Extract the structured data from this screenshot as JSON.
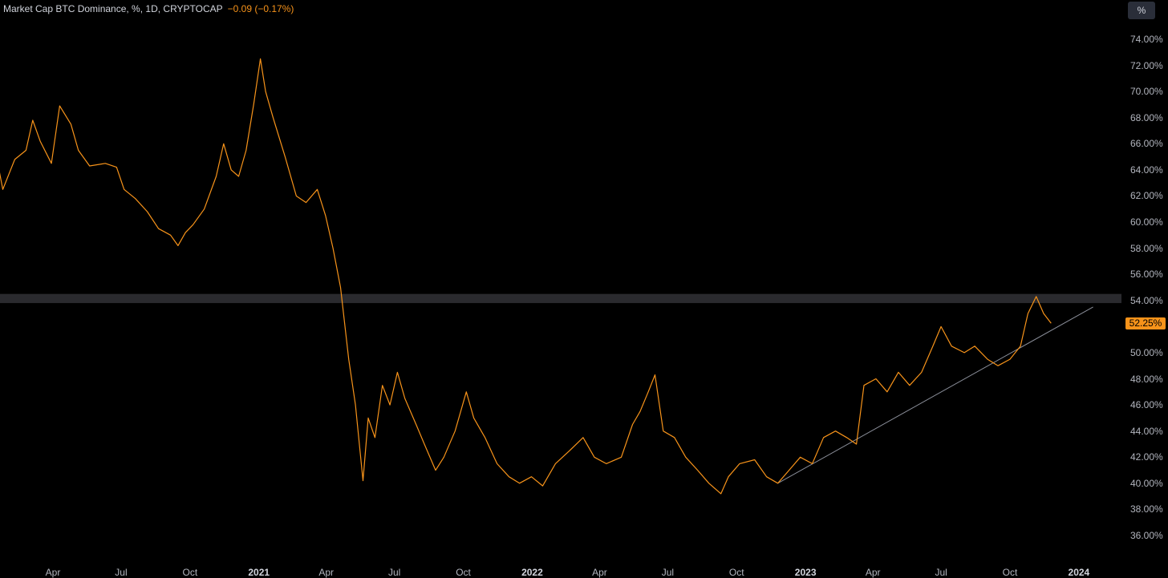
{
  "header": {
    "title": "Market Cap BTC Dominance, %, 1D, CRYPTOCAP",
    "change": "−0.09 (−0.17%)"
  },
  "scale_button": "%",
  "colors": {
    "background": "#000000",
    "series": "#f7931a",
    "trendline": "#8a8e99",
    "band": "#2a2a2e",
    "axis_text": "#b2b5be"
  },
  "chart_data": {
    "type": "line",
    "series": [
      {
        "values": [
          [
            "2020-01-01",
            67.8
          ],
          [
            "2020-01-15",
            65.5
          ],
          [
            "2020-01-25",
            62.5
          ],
          [
            "2020-02-10",
            64.8
          ],
          [
            "2020-02-25",
            65.5
          ],
          [
            "2020-03-05",
            67.8
          ],
          [
            "2020-03-15",
            66.2
          ],
          [
            "2020-03-30",
            64.5
          ],
          [
            "2020-04-10",
            68.9
          ],
          [
            "2020-04-25",
            67.5
          ],
          [
            "2020-05-05",
            65.5
          ],
          [
            "2020-05-20",
            64.3
          ],
          [
            "2020-06-10",
            64.5
          ],
          [
            "2020-06-25",
            64.2
          ],
          [
            "2020-07-05",
            62.5
          ],
          [
            "2020-07-20",
            61.8
          ],
          [
            "2020-08-05",
            60.8
          ],
          [
            "2020-08-20",
            59.5
          ],
          [
            "2020-09-05",
            59.0
          ],
          [
            "2020-09-15",
            58.2
          ],
          [
            "2020-09-25",
            59.2
          ],
          [
            "2020-10-05",
            59.8
          ],
          [
            "2020-10-20",
            61.0
          ],
          [
            "2020-11-05",
            63.5
          ],
          [
            "2020-11-15",
            66.0
          ],
          [
            "2020-11-25",
            64.0
          ],
          [
            "2020-12-05",
            63.5
          ],
          [
            "2020-12-15",
            65.5
          ],
          [
            "2020-12-25",
            69.0
          ],
          [
            "2021-01-03",
            72.5
          ],
          [
            "2021-01-10",
            70.0
          ],
          [
            "2021-01-20",
            68.0
          ],
          [
            "2021-02-05",
            65.0
          ],
          [
            "2021-02-20",
            62.0
          ],
          [
            "2021-03-05",
            61.5
          ],
          [
            "2021-03-20",
            62.5
          ],
          [
            "2021-03-31",
            60.5
          ],
          [
            "2021-04-10",
            58.0
          ],
          [
            "2021-04-20",
            55.0
          ],
          [
            "2021-05-01",
            49.5
          ],
          [
            "2021-05-10",
            46.0
          ],
          [
            "2021-05-20",
            40.2
          ],
          [
            "2021-05-27",
            45.0
          ],
          [
            "2021-06-05",
            43.5
          ],
          [
            "2021-06-15",
            47.5
          ],
          [
            "2021-06-25",
            46.0
          ],
          [
            "2021-07-05",
            48.5
          ],
          [
            "2021-07-15",
            46.5
          ],
          [
            "2021-07-30",
            44.5
          ],
          [
            "2021-08-10",
            43.0
          ],
          [
            "2021-08-25",
            41.0
          ],
          [
            "2021-09-05",
            42.0
          ],
          [
            "2021-09-20",
            44.0
          ],
          [
            "2021-10-05",
            47.0
          ],
          [
            "2021-10-15",
            45.0
          ],
          [
            "2021-10-30",
            43.5
          ],
          [
            "2021-11-15",
            41.5
          ],
          [
            "2021-12-01",
            40.5
          ],
          [
            "2021-12-15",
            40.0
          ],
          [
            "2021-12-31",
            40.5
          ],
          [
            "2022-01-15",
            39.8
          ],
          [
            "2022-02-01",
            41.5
          ],
          [
            "2022-02-20",
            42.5
          ],
          [
            "2022-03-10",
            43.5
          ],
          [
            "2022-03-25",
            42.0
          ],
          [
            "2022-04-10",
            41.5
          ],
          [
            "2022-04-30",
            42.0
          ],
          [
            "2022-05-15",
            44.5
          ],
          [
            "2022-05-25",
            45.5
          ],
          [
            "2022-06-05",
            47.0
          ],
          [
            "2022-06-14",
            48.3
          ],
          [
            "2022-06-25",
            44.0
          ],
          [
            "2022-07-10",
            43.5
          ],
          [
            "2022-07-25",
            42.0
          ],
          [
            "2022-08-10",
            41.0
          ],
          [
            "2022-08-25",
            40.0
          ],
          [
            "2022-09-10",
            39.2
          ],
          [
            "2022-09-20",
            40.5
          ],
          [
            "2022-10-05",
            41.5
          ],
          [
            "2022-10-25",
            41.8
          ],
          [
            "2022-11-10",
            40.5
          ],
          [
            "2022-11-25",
            40.0
          ],
          [
            "2022-12-10",
            41.0
          ],
          [
            "2022-12-25",
            42.0
          ],
          [
            "2023-01-10",
            41.5
          ],
          [
            "2023-01-25",
            43.5
          ],
          [
            "2023-02-10",
            44.0
          ],
          [
            "2023-02-25",
            43.5
          ],
          [
            "2023-03-10",
            43.0
          ],
          [
            "2023-03-20",
            47.5
          ],
          [
            "2023-04-05",
            48.0
          ],
          [
            "2023-04-20",
            47.0
          ],
          [
            "2023-05-05",
            48.5
          ],
          [
            "2023-05-20",
            47.5
          ],
          [
            "2023-06-05",
            48.5
          ],
          [
            "2023-06-20",
            50.5
          ],
          [
            "2023-07-01",
            52.0
          ],
          [
            "2023-07-15",
            50.5
          ],
          [
            "2023-08-01",
            50.0
          ],
          [
            "2023-08-15",
            50.5
          ],
          [
            "2023-09-01",
            49.5
          ],
          [
            "2023-09-15",
            49.0
          ],
          [
            "2023-10-01",
            49.5
          ],
          [
            "2023-10-15",
            50.5
          ],
          [
            "2023-10-25",
            53.0
          ],
          [
            "2023-11-05",
            54.3
          ],
          [
            "2023-11-15",
            53.0
          ],
          [
            "2023-11-25",
            52.25
          ]
        ]
      }
    ],
    "trendline": [
      [
        "2022-11-25",
        40.0
      ],
      [
        "2024-01-20",
        53.5
      ]
    ],
    "band": [
      53.8,
      54.5
    ],
    "last_value_label": "52.25%",
    "y_ticks": [
      "74.00%",
      "72.00%",
      "70.00%",
      "68.00%",
      "66.00%",
      "64.00%",
      "62.00%",
      "60.00%",
      "58.00%",
      "56.00%",
      "54.00%",
      "50.00%",
      "48.00%",
      "46.00%",
      "44.00%",
      "42.00%",
      "40.00%",
      "38.00%",
      "36.00%"
    ],
    "x_ticks": [
      {
        "label": "Apr",
        "date": "2020-04-01",
        "year": false
      },
      {
        "label": "Jul",
        "date": "2020-07-01",
        "year": false
      },
      {
        "label": "Oct",
        "date": "2020-10-01",
        "year": false
      },
      {
        "label": "2021",
        "date": "2021-01-01",
        "year": true
      },
      {
        "label": "Apr",
        "date": "2021-04-01",
        "year": false
      },
      {
        "label": "Jul",
        "date": "2021-07-01",
        "year": false
      },
      {
        "label": "Oct",
        "date": "2021-10-01",
        "year": false
      },
      {
        "label": "2022",
        "date": "2022-01-01",
        "year": true
      },
      {
        "label": "Apr",
        "date": "2022-04-01",
        "year": false
      },
      {
        "label": "Jul",
        "date": "2022-07-01",
        "year": false
      },
      {
        "label": "Oct",
        "date": "2022-10-01",
        "year": false
      },
      {
        "label": "2023",
        "date": "2023-01-01",
        "year": true
      },
      {
        "label": "Apr",
        "date": "2023-04-01",
        "year": false
      },
      {
        "label": "Jul",
        "date": "2023-07-01",
        "year": false
      },
      {
        "label": "Oct",
        "date": "2023-10-01",
        "year": false
      },
      {
        "label": "2024",
        "date": "2024-01-01",
        "year": true
      }
    ],
    "ylim": [
      35,
      76
    ],
    "grid": false
  }
}
